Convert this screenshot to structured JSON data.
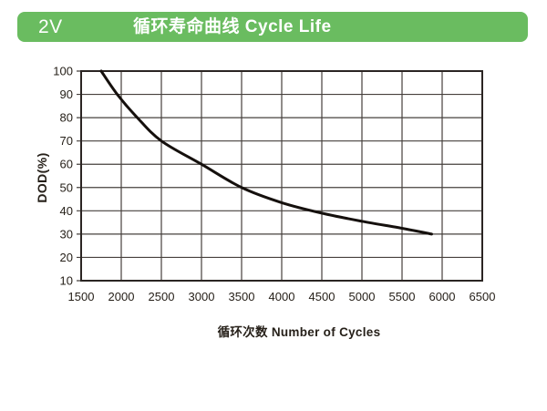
{
  "header": {
    "badge": "2V",
    "title": "循环寿命曲线 Cycle Life",
    "bg_color": "#6abc60",
    "text_color": "#ffffff"
  },
  "chart_data": {
    "type": "line",
    "title": "循环寿命曲线 Cycle Life",
    "xlabel": "循环次数 Number of Cycles",
    "ylabel": "DOD(%)",
    "xlim": [
      1500,
      6500
    ],
    "ylim": [
      10,
      100
    ],
    "x_ticks": [
      1500,
      2000,
      2500,
      3000,
      3500,
      4000,
      4500,
      5000,
      5500,
      6000,
      6500
    ],
    "y_ticks": [
      10,
      20,
      30,
      40,
      50,
      60,
      70,
      80,
      90,
      100
    ],
    "grid": true,
    "legend": "none",
    "colors": {
      "frame": "#2b2523",
      "grid": "#46403d",
      "tick_label": "#262019",
      "curve": "#15100d"
    },
    "series": [
      {
        "name": "cycle-life",
        "points": [
          [
            1750,
            100
          ],
          [
            1950,
            90
          ],
          [
            2200,
            80
          ],
          [
            2500,
            70
          ],
          [
            3000,
            60
          ],
          [
            3500,
            50
          ],
          [
            4000,
            43.5
          ],
          [
            4500,
            39
          ],
          [
            5000,
            35.5
          ],
          [
            5500,
            32.5
          ],
          [
            5870,
            30
          ]
        ]
      }
    ]
  }
}
